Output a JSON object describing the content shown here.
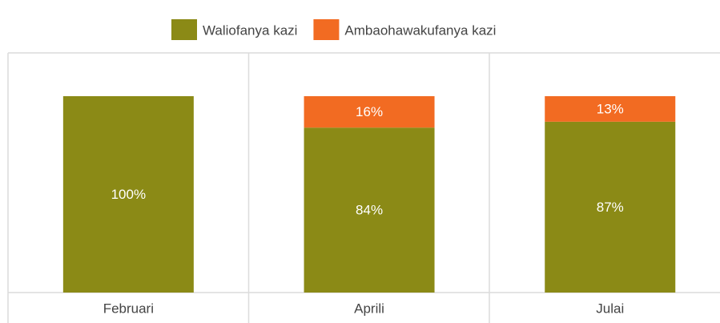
{
  "chart_data": {
    "type": "stacked_bar",
    "categories": [
      "Februari",
      "Aprili",
      "Julai"
    ],
    "series": [
      {
        "name": "Waliofanya kazi",
        "color": "#8b8a16",
        "values": [
          100,
          84,
          87
        ],
        "value_labels": [
          "100%",
          "84%",
          "87%"
        ]
      },
      {
        "name": "Ambaohawakufanya kazi",
        "color": "#f26b22",
        "values": [
          null,
          16,
          13
        ],
        "value_labels": [
          null,
          "16%",
          "13%"
        ]
      }
    ],
    "ylim": [
      0,
      100
    ],
    "legend": "top"
  }
}
